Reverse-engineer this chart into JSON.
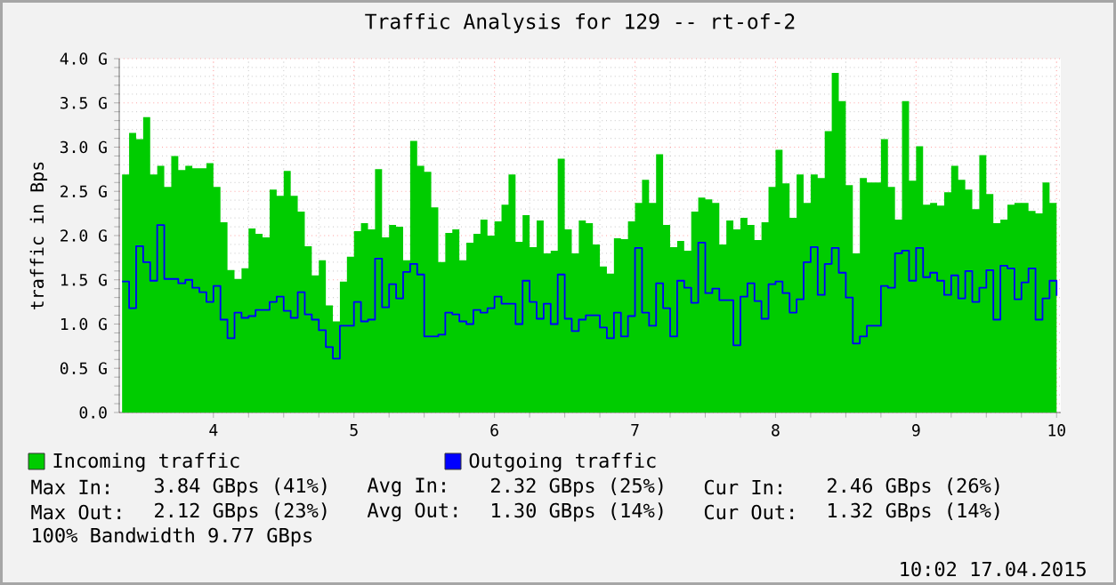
{
  "chart_data": {
    "type": "step",
    "title": "Traffic Analysis for 129 -- rt-of-2",
    "ylabel": "traffic in Bps",
    "x": [
      3.35,
      3.4,
      3.45,
      3.5,
      3.55,
      3.6,
      3.65,
      3.7,
      3.75,
      3.8,
      3.85,
      3.9,
      3.95,
      4.0,
      4.05,
      4.1,
      4.15,
      4.2,
      4.25,
      4.3,
      4.35,
      4.4,
      4.45,
      4.5,
      4.55,
      4.6,
      4.65,
      4.7,
      4.75,
      4.8,
      4.85,
      4.9,
      4.95,
      5.0,
      5.05,
      5.1,
      5.15,
      5.2,
      5.25,
      5.3,
      5.35,
      5.4,
      5.45,
      5.5,
      5.55,
      5.6,
      5.65,
      5.7,
      5.75,
      5.8,
      5.85,
      5.9,
      5.95,
      6.0,
      6.05,
      6.1,
      6.15,
      6.2,
      6.25,
      6.3,
      6.35,
      6.4,
      6.45,
      6.5,
      6.55,
      6.6,
      6.65,
      6.7,
      6.75,
      6.8,
      6.85,
      6.9,
      6.95,
      7.0,
      7.05,
      7.1,
      7.15,
      7.2,
      7.25,
      7.3,
      7.35,
      7.4,
      7.45,
      7.5,
      7.55,
      7.6,
      7.65,
      7.7,
      7.75,
      7.8,
      7.85,
      7.9,
      7.95,
      8.0,
      8.05,
      8.1,
      8.15,
      8.2,
      8.25,
      8.3,
      8.35,
      8.4,
      8.45,
      8.5,
      8.55,
      8.6,
      8.65,
      8.7,
      8.75,
      8.8,
      8.85,
      8.9,
      8.95,
      9.0,
      9.05,
      9.1,
      9.15,
      9.2,
      9.25,
      9.3,
      9.35,
      9.4,
      9.45,
      9.5,
      9.55,
      9.6,
      9.65,
      9.7,
      9.75,
      9.8,
      9.85,
      9.9,
      9.95,
      10.0
    ],
    "series": [
      {
        "name": "Incoming traffic",
        "type": "area",
        "color": "#00cc00",
        "values": [
          2.69,
          3.16,
          3.09,
          3.34,
          2.69,
          2.79,
          2.55,
          2.9,
          2.74,
          2.79,
          2.76,
          2.76,
          2.82,
          2.55,
          2.15,
          1.61,
          1.51,
          1.63,
          2.08,
          2.02,
          1.98,
          2.52,
          2.45,
          2.73,
          2.45,
          2.27,
          1.88,
          1.55,
          1.72,
          1.21,
          1.03,
          1.48,
          1.76,
          2.05,
          2.14,
          2.07,
          2.75,
          1.98,
          2.12,
          2.1,
          1.72,
          3.07,
          2.79,
          2.72,
          2.32,
          1.7,
          2.03,
          2.07,
          1.72,
          1.92,
          2.02,
          2.18,
          2.0,
          2.16,
          2.35,
          2.69,
          1.93,
          2.23,
          1.87,
          2.17,
          1.8,
          1.83,
          2.87,
          2.07,
          1.8,
          2.17,
          2.14,
          1.9,
          1.65,
          1.57,
          1.97,
          1.96,
          2.16,
          2.37,
          2.63,
          2.37,
          2.92,
          2.12,
          1.87,
          1.94,
          1.83,
          2.27,
          2.43,
          2.41,
          2.37,
          1.9,
          2.17,
          2.07,
          2.2,
          2.12,
          1.95,
          2.15,
          2.55,
          2.97,
          2.59,
          2.2,
          2.69,
          2.37,
          2.69,
          2.65,
          3.18,
          3.84,
          3.52,
          2.57,
          1.8,
          2.65,
          2.6,
          2.6,
          3.09,
          2.55,
          2.18,
          3.52,
          2.62,
          3.01,
          2.35,
          2.37,
          2.34,
          2.49,
          2.79,
          2.63,
          2.52,
          2.3,
          2.91,
          2.47,
          2.14,
          2.18,
          2.35,
          2.37,
          2.37,
          2.28,
          2.25,
          2.6,
          2.37,
          2.46
        ]
      },
      {
        "name": "Outgoing traffic",
        "color": "#0000ff",
        "values": [
          1.48,
          1.18,
          1.88,
          1.7,
          1.49,
          2.12,
          1.51,
          1.51,
          1.46,
          1.5,
          1.41,
          1.36,
          1.25,
          1.43,
          1.05,
          0.84,
          1.13,
          1.07,
          1.09,
          1.16,
          1.16,
          1.25,
          1.31,
          1.15,
          1.07,
          1.36,
          1.11,
          1.05,
          0.93,
          0.74,
          0.61,
          0.98,
          0.98,
          1.25,
          1.03,
          1.05,
          1.74,
          1.19,
          1.45,
          1.29,
          1.59,
          1.68,
          1.56,
          0.86,
          0.86,
          0.88,
          1.13,
          1.11,
          1.03,
          1.0,
          1.16,
          1.13,
          1.18,
          1.31,
          1.23,
          1.23,
          1.0,
          1.49,
          1.25,
          1.06,
          1.23,
          1.0,
          1.56,
          1.06,
          0.92,
          1.05,
          1.1,
          1.1,
          0.96,
          0.84,
          1.13,
          0.86,
          1.09,
          1.86,
          1.13,
          0.98,
          1.46,
          1.18,
          0.86,
          1.49,
          1.41,
          1.24,
          1.92,
          1.35,
          1.4,
          1.27,
          1.27,
          0.76,
          1.31,
          1.46,
          1.26,
          1.06,
          1.45,
          1.48,
          1.35,
          1.13,
          1.28,
          1.7,
          1.87,
          1.33,
          1.68,
          1.86,
          1.58,
          1.3,
          0.78,
          0.86,
          0.98,
          0.98,
          1.43,
          1.41,
          1.8,
          1.83,
          1.49,
          1.86,
          1.53,
          1.58,
          1.49,
          1.33,
          1.55,
          1.29,
          1.6,
          1.25,
          1.41,
          1.61,
          1.05,
          1.66,
          1.63,
          1.28,
          1.47,
          1.63,
          1.05,
          1.29,
          1.49,
          1.32
        ]
      }
    ],
    "xlim": [
      3.33,
      10.03
    ],
    "xticks": [
      4,
      5,
      6,
      7,
      8,
      9,
      10
    ],
    "ylim": [
      0,
      4.0
    ],
    "yticks": [
      {
        "value": 0,
        "label": "0.0"
      },
      {
        "value": 0.5,
        "label": "0.5 G"
      },
      {
        "value": 1.0,
        "label": "1.0 G"
      },
      {
        "value": 1.5,
        "label": "1.5 G"
      },
      {
        "value": 2.0,
        "label": "2.0 G"
      },
      {
        "value": 2.5,
        "label": "2.5 G"
      },
      {
        "value": 3.0,
        "label": "3.0 G"
      },
      {
        "value": 3.5,
        "label": "3.5 G"
      },
      {
        "value": 4.0,
        "label": "4.0 G"
      }
    ],
    "grid": true,
    "legend": "bottom",
    "annotations": [
      "Max In:",
      "3.84 GBps (41%)",
      "Avg In:",
      "2.32 GBps (25%)",
      "Cur In:",
      "2.46 GBps (26%)",
      "Max Out:",
      "2.12 GBps (23%)",
      "Avg Out:",
      "1.30 GBps (14%)",
      "Cur Out:",
      "1.32 GBps (14%)",
      "100% Bandwidth 9.77 GBps",
      "10:02 17.04.2015"
    ]
  }
}
